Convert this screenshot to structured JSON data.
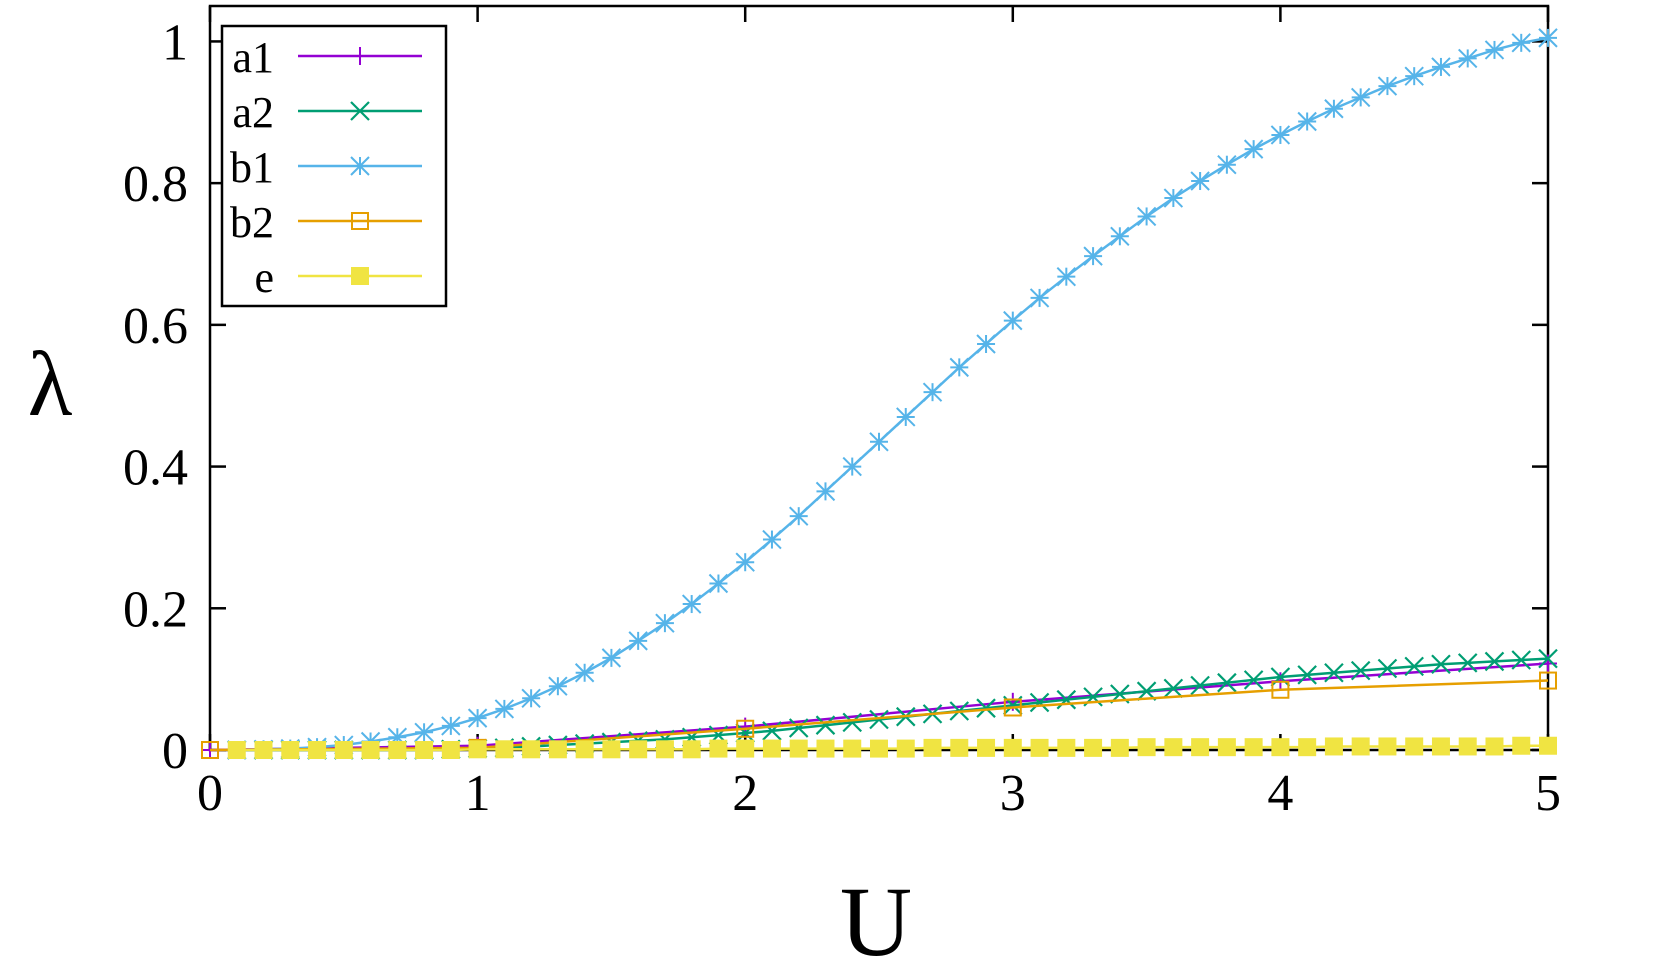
{
  "chart_data": {
    "type": "line",
    "xlabel": "U",
    "ylabel": "λ",
    "xlim": [
      0,
      5
    ],
    "ylim": [
      0,
      1.05
    ],
    "xticks": [
      0,
      1,
      2,
      3,
      4,
      5
    ],
    "xtick_labels": [
      "0",
      "1",
      "2",
      "3",
      "4",
      "5"
    ],
    "yticks": [
      0,
      0.2,
      0.4,
      0.6,
      0.8,
      1
    ],
    "ytick_labels": [
      "0",
      "0.2",
      "0.4",
      "0.6",
      "0.8",
      "1"
    ],
    "legend_position": "top-left",
    "grid": false,
    "series": [
      {
        "name": "a1",
        "color": "#9400d3",
        "marker": "plus",
        "x": [
          0,
          1,
          2,
          3,
          4,
          5
        ],
        "y": [
          0,
          0.006,
          0.033,
          0.068,
          0.097,
          0.122
        ]
      },
      {
        "name": "a2",
        "color": "#009e73",
        "marker": "cross",
        "x": [
          0.1,
          0.2,
          0.3,
          0.4,
          0.5,
          0.6,
          0.7,
          0.8,
          0.9,
          1.0,
          1.1,
          1.2,
          1.3,
          1.4,
          1.5,
          1.6,
          1.7,
          1.8,
          1.9,
          2.0,
          2.1,
          2.2,
          2.3,
          2.4,
          2.5,
          2.6,
          2.7,
          2.8,
          2.9,
          3.0,
          3.1,
          3.2,
          3.3,
          3.4,
          3.5,
          3.6,
          3.7,
          3.8,
          3.9,
          4.0,
          4.1,
          4.2,
          4.3,
          4.4,
          4.5,
          4.6,
          4.7,
          4.8,
          4.9,
          5.0
        ],
        "y": [
          0,
          0,
          0,
          0,
          0,
          0,
          0,
          0,
          0.001,
          0.002,
          0.003,
          0.005,
          0.007,
          0.009,
          0.011,
          0.013,
          0.015,
          0.018,
          0.021,
          0.024,
          0.027,
          0.031,
          0.035,
          0.039,
          0.043,
          0.047,
          0.051,
          0.055,
          0.059,
          0.063,
          0.067,
          0.071,
          0.075,
          0.079,
          0.083,
          0.087,
          0.091,
          0.095,
          0.099,
          0.103,
          0.106,
          0.109,
          0.112,
          0.115,
          0.118,
          0.121,
          0.123,
          0.125,
          0.127,
          0.129
        ]
      },
      {
        "name": "b1",
        "color": "#56b4e9",
        "marker": "star",
        "x": [
          0.1,
          0.2,
          0.3,
          0.4,
          0.5,
          0.6,
          0.7,
          0.8,
          0.9,
          1.0,
          1.1,
          1.2,
          1.3,
          1.4,
          1.5,
          1.6,
          1.7,
          1.8,
          1.9,
          2.0,
          2.1,
          2.2,
          2.3,
          2.4,
          2.5,
          2.6,
          2.7,
          2.8,
          2.9,
          3.0,
          3.1,
          3.2,
          3.3,
          3.4,
          3.5,
          3.6,
          3.7,
          3.8,
          3.9,
          4.0,
          4.1,
          4.2,
          4.3,
          4.4,
          4.5,
          4.6,
          4.7,
          4.8,
          4.9,
          5.0
        ],
        "y": [
          0.0,
          0.001,
          0.002,
          0.004,
          0.007,
          0.012,
          0.018,
          0.025,
          0.034,
          0.045,
          0.058,
          0.073,
          0.09,
          0.109,
          0.13,
          0.154,
          0.179,
          0.206,
          0.235,
          0.265,
          0.297,
          0.33,
          0.365,
          0.4,
          0.435,
          0.47,
          0.505,
          0.54,
          0.573,
          0.606,
          0.638,
          0.668,
          0.697,
          0.725,
          0.753,
          0.779,
          0.803,
          0.826,
          0.848,
          0.868,
          0.887,
          0.905,
          0.921,
          0.937,
          0.951,
          0.964,
          0.976,
          0.988,
          0.998,
          1.005
        ]
      },
      {
        "name": "b2",
        "color": "#e69f00",
        "marker": "open-square",
        "x": [
          0,
          1,
          2,
          3,
          4,
          5
        ],
        "y": [
          0,
          0.003,
          0.03,
          0.06,
          0.085,
          0.098
        ]
      },
      {
        "name": "e",
        "color": "#f0e442",
        "marker": "filled-square",
        "x": [
          0.1,
          0.2,
          0.3,
          0.4,
          0.5,
          0.6,
          0.7,
          0.8,
          0.9,
          1.0,
          1.1,
          1.2,
          1.3,
          1.4,
          1.5,
          1.6,
          1.7,
          1.8,
          1.9,
          2.0,
          2.1,
          2.2,
          2.3,
          2.4,
          2.5,
          2.6,
          2.7,
          2.8,
          2.9,
          3.0,
          3.1,
          3.2,
          3.3,
          3.4,
          3.5,
          3.6,
          3.7,
          3.8,
          3.9,
          4.0,
          4.1,
          4.2,
          4.3,
          4.4,
          4.5,
          4.6,
          4.7,
          4.8,
          4.9,
          5.0
        ],
        "y": [
          0,
          0,
          0,
          0,
          0,
          0,
          0,
          0,
          0,
          0.001,
          0.001,
          0.001,
          0.001,
          0.001,
          0.001,
          0.001,
          0.001,
          0.001,
          0.002,
          0.002,
          0.002,
          0.002,
          0.002,
          0.002,
          0.002,
          0.002,
          0.003,
          0.003,
          0.003,
          0.003,
          0.003,
          0.003,
          0.003,
          0.003,
          0.004,
          0.004,
          0.004,
          0.004,
          0.004,
          0.004,
          0.004,
          0.005,
          0.005,
          0.005,
          0.005,
          0.005,
          0.005,
          0.005,
          0.006,
          0.006
        ]
      }
    ]
  }
}
